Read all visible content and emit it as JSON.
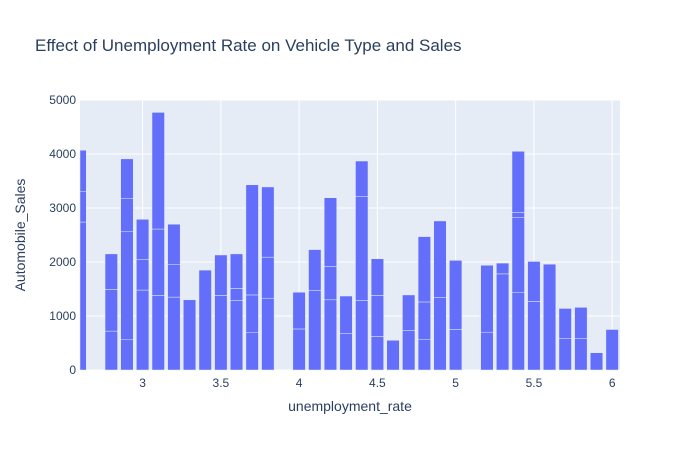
{
  "chart_data": {
    "type": "bar",
    "title": "Effect of Unemployment Rate on Vehicle Type and Sales",
    "xlabel": "unemployment_rate",
    "ylabel": "Automobile_Sales",
    "xlim": [
      2.6,
      6.05
    ],
    "ylim": [
      0,
      5000
    ],
    "bar_width": 0.08,
    "x_ticks": [
      3,
      3.5,
      4,
      4.5,
      5,
      5.5,
      6
    ],
    "x_tick_labels": [
      "3",
      "3.5",
      "4",
      "4.5",
      "5",
      "5.5",
      "6"
    ],
    "y_ticks": [
      0,
      1000,
      2000,
      3000,
      4000,
      5000
    ],
    "y_tick_labels": [
      "0",
      "1000",
      "2000",
      "3000",
      "4000",
      "5000"
    ],
    "grid": true,
    "stacked": true,
    "colors": {
      "bar": "#636efa",
      "plot_bg": "#e5ecf6",
      "grid": "#ffffff",
      "text": "#2a3f5f"
    },
    "bars": [
      {
        "x": 2.6,
        "segments": [
          2740,
          570,
          760
        ]
      },
      {
        "x": 2.8,
        "segments": [
          720,
          770,
          660
        ]
      },
      {
        "x": 2.9,
        "segments": [
          560,
          2000,
          620,
          730
        ]
      },
      {
        "x": 3.0,
        "segments": [
          1480,
          570,
          740
        ]
      },
      {
        "x": 3.1,
        "segments": [
          1380,
          1230,
          2160
        ]
      },
      {
        "x": 3.2,
        "segments": [
          1350,
          600,
          750
        ]
      },
      {
        "x": 3.3,
        "segments": [
          1300
        ]
      },
      {
        "x": 3.4,
        "segments": [
          1850
        ]
      },
      {
        "x": 3.5,
        "segments": [
          1380,
          750
        ]
      },
      {
        "x": 3.6,
        "segments": [
          1290,
          220,
          640
        ]
      },
      {
        "x": 3.7,
        "segments": [
          690,
          700,
          2040
        ]
      },
      {
        "x": 3.8,
        "segments": [
          1330,
          760,
          1300
        ]
      },
      {
        "x": 4.0,
        "segments": [
          760,
          680
        ]
      },
      {
        "x": 4.1,
        "segments": [
          1470,
          760
        ]
      },
      {
        "x": 4.2,
        "segments": [
          1300,
          620,
          1270
        ]
      },
      {
        "x": 4.3,
        "segments": [
          680,
          690
        ]
      },
      {
        "x": 4.4,
        "segments": [
          1290,
          1920,
          660
        ]
      },
      {
        "x": 4.5,
        "segments": [
          620,
          760,
          680
        ]
      },
      {
        "x": 4.6,
        "segments": [
          550
        ]
      },
      {
        "x": 4.7,
        "segments": [
          730,
          660
        ]
      },
      {
        "x": 4.8,
        "segments": [
          570,
          690,
          1210
        ]
      },
      {
        "x": 4.9,
        "segments": [
          1340,
          1420
        ]
      },
      {
        "x": 5.0,
        "segments": [
          750,
          1280
        ]
      },
      {
        "x": 5.2,
        "segments": [
          700,
          1240
        ]
      },
      {
        "x": 5.3,
        "segments": [
          1780,
          200
        ]
      },
      {
        "x": 5.4,
        "segments": [
          1440,
          1380,
          100,
          1130
        ]
      },
      {
        "x": 5.5,
        "segments": [
          1270,
          740
        ]
      },
      {
        "x": 5.6,
        "segments": [
          1960
        ]
      },
      {
        "x": 5.7,
        "segments": [
          580,
          560
        ]
      },
      {
        "x": 5.8,
        "segments": [
          580,
          580
        ]
      },
      {
        "x": 5.9,
        "segments": [
          320
        ]
      },
      {
        "x": 6.0,
        "segments": [
          750
        ]
      }
    ]
  }
}
